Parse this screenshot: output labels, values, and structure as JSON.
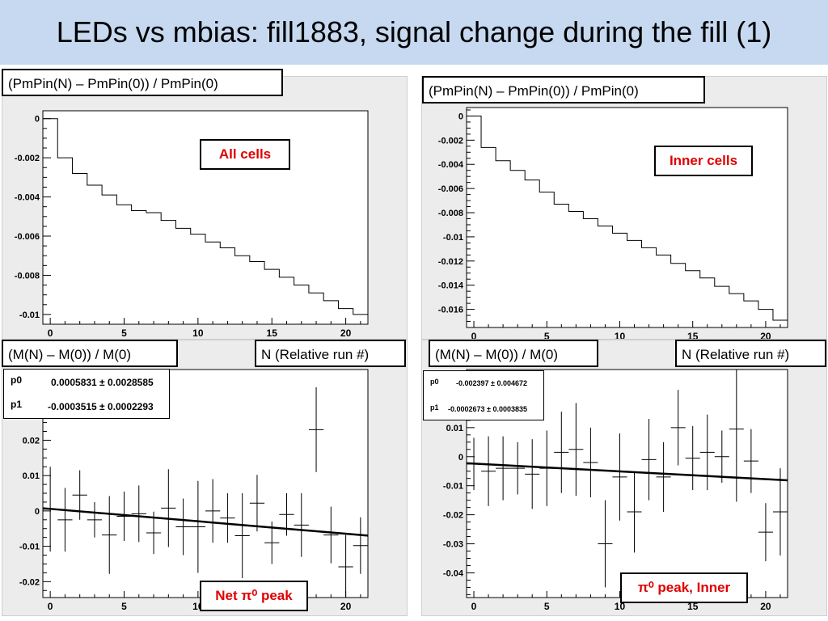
{
  "slide": {
    "title": "LEDs vs mbias: fill1883, signal change during the fill (1)"
  },
  "labels": {
    "tl_title": "(PmPin(N) – PmPin(0)) / PmPin(0)",
    "tr_title": "(PmPin(N) – PmPin(0)) / PmPin(0)",
    "bl_title": "(M(N) – M(0)) / M(0)",
    "br_title": "(M(N) – M(0)) / M(0)",
    "xaxis_left": "N (Relative run #)",
    "xaxis_right": "N (Relative run #)",
    "all_cells": "All cells",
    "inner_cells": "Inner cells",
    "net_pi0": "Net π⁰ peak",
    "pi0_inner": "π⁰ peak, Inner"
  },
  "fits": {
    "bl": {
      "p0_label": "p0",
      "p0_value": "0.0005831 ± 0.0028585",
      "p1_label": "p1",
      "p1_value": "-0.0003515 ± 0.0002293"
    },
    "br": {
      "p0_label": "p0",
      "p0_value": "-0.002397 ± 0.004672",
      "p1_label": "p1",
      "p1_value": "-0.0002673 ± 0.0003835"
    }
  },
  "colors": {
    "title_bar": "#c6d9f0",
    "panel": "#ececec",
    "frame": "#ffffff",
    "label_red": "#e00000"
  },
  "chart_data": [
    {
      "id": "tl",
      "type": "step",
      "xlim": [
        -0.5,
        21.5
      ],
      "ylim": [
        -0.0105,
        0.0004
      ],
      "xticks": [
        0,
        5,
        10,
        15,
        20
      ],
      "xtick_labels": [
        "0",
        "5",
        "10",
        "15",
        "20"
      ],
      "yticks": [
        0,
        -0.002,
        -0.004,
        -0.006,
        -0.008,
        -0.01
      ],
      "ytick_labels": [
        "0",
        "-0.002",
        "-0.004",
        "-0.006",
        "-0.008",
        "-0.01"
      ],
      "bins_start": -0.5,
      "bin_width": 1,
      "values": [
        0,
        -0.002,
        -0.0028,
        -0.0034,
        -0.0039,
        -0.0044,
        -0.0047,
        -0.0048,
        -0.0052,
        -0.0056,
        -0.0059,
        -0.0063,
        -0.0066,
        -0.007,
        -0.0073,
        -0.0077,
        -0.0081,
        -0.0085,
        -0.0089,
        -0.0093,
        -0.0097,
        -0.01
      ]
    },
    {
      "id": "tr",
      "type": "step",
      "xlim": [
        -0.5,
        21.5
      ],
      "ylim": [
        -0.0175,
        0.0007
      ],
      "xticks": [
        0,
        5,
        10,
        15,
        20
      ],
      "xtick_labels": [
        "0",
        "5",
        "10",
        "15",
        "20"
      ],
      "yticks": [
        0,
        -0.002,
        -0.004,
        -0.006,
        -0.008,
        -0.01,
        -0.012,
        -0.014,
        -0.016
      ],
      "ytick_labels": [
        "0",
        "-0.002",
        "-0.004",
        "-0.006",
        "-0.008",
        "-0.01",
        "-0.012",
        "-0.014",
        "-0.016"
      ],
      "bins_start": -0.5,
      "bin_width": 1,
      "values": [
        0,
        -0.0026,
        -0.0037,
        -0.0045,
        -0.0053,
        -0.0063,
        -0.0073,
        -0.0079,
        -0.0085,
        -0.0091,
        -0.0097,
        -0.0103,
        -0.0109,
        -0.0115,
        -0.0122,
        -0.0128,
        -0.0134,
        -0.0141,
        -0.0147,
        -0.0153,
        -0.016,
        -0.0169
      ]
    },
    {
      "id": "bl",
      "type": "errorbar",
      "xlim": [
        -0.5,
        21.5
      ],
      "ylim": [
        -0.0245,
        0.04
      ],
      "xticks": [
        0,
        5,
        10,
        15,
        20
      ],
      "xtick_labels": [
        "0",
        "5",
        "10",
        "15",
        "20"
      ],
      "yticks": [
        0.02,
        0.01,
        0,
        -0.01,
        -0.02
      ],
      "ytick_labels": [
        "0.02",
        "0.01",
        "0",
        "-0.01",
        "-0.02"
      ],
      "x": [
        0,
        1,
        2,
        3,
        4,
        5,
        6,
        7,
        8,
        9,
        10,
        11,
        12,
        13,
        14,
        15,
        16,
        17,
        18,
        19,
        20,
        21
      ],
      "y": [
        0.0005,
        -0.0025,
        0.0045,
        -0.0025,
        -0.0068,
        -0.0015,
        -0.0008,
        -0.0062,
        0.0008,
        -0.0045,
        -0.0045,
        0,
        -0.002,
        -0.007,
        0.0022,
        -0.009,
        -0.001,
        -0.004,
        0.023,
        -0.0068,
        -0.0158,
        -0.0098
      ],
      "yerr": [
        0.012,
        0.009,
        0.007,
        0.005,
        0.011,
        0.007,
        0.008,
        0.006,
        0.011,
        0.008,
        0.013,
        0.009,
        0.007,
        0.012,
        0.008,
        0.006,
        0.006,
        0.009,
        0.012,
        0.008,
        0.009,
        0.008
      ],
      "fit": {
        "p0": 0.0005831,
        "p1": -0.0003515
      }
    },
    {
      "id": "br",
      "type": "errorbar",
      "xlim": [
        -0.5,
        21.5
      ],
      "ylim": [
        -0.0485,
        0.03
      ],
      "xticks": [
        0,
        5,
        10,
        15,
        20
      ],
      "xtick_labels": [
        "0",
        "5",
        "10",
        "15",
        "20"
      ],
      "yticks": [
        0.01,
        0,
        -0.01,
        -0.02,
        -0.03,
        -0.04
      ],
      "ytick_labels": [
        "0.01",
        "0",
        "-0.01",
        "-0.02",
        "-0.03",
        "-0.04"
      ],
      "x": [
        0,
        1,
        2,
        3,
        4,
        5,
        6,
        7,
        8,
        9,
        10,
        11,
        12,
        13,
        14,
        15,
        16,
        17,
        18,
        19,
        20,
        21
      ],
      "y": [
        -0.0025,
        -0.005,
        -0.004,
        -0.004,
        -0.006,
        -0.004,
        0.0015,
        0.0025,
        -0.002,
        -0.03,
        -0.007,
        -0.019,
        -0.001,
        -0.007,
        0.01,
        -0.0005,
        0.0015,
        0,
        0.0095,
        -0.0015,
        -0.026,
        -0.019
      ],
      "yerr": [
        0.009,
        0.012,
        0.011,
        0.009,
        0.012,
        0.013,
        0.014,
        0.016,
        0.012,
        0.015,
        0.015,
        0.014,
        0.014,
        0.012,
        0.013,
        0.011,
        0.013,
        0.009,
        0.025,
        0.011,
        0.01,
        0.015
      ],
      "fit": {
        "p0": -0.002397,
        "p1": -0.0002673
      }
    }
  ]
}
